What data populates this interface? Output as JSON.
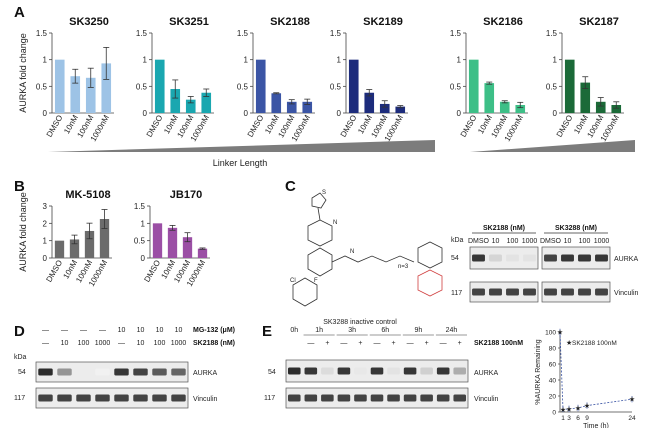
{
  "panels": {
    "A": "A",
    "B": "B",
    "C": "C",
    "D": "D",
    "E": "E"
  },
  "panelA": {
    "ylabel": "AURKA fold change",
    "yticks": [
      "0",
      "0.5",
      "1",
      "1.5"
    ],
    "categories": [
      "DMSO",
      "10nM",
      "100nM",
      "1000nM"
    ],
    "linker_label": "Linker Length",
    "charts": [
      {
        "title": "SK3250",
        "color": "#9dc3e6",
        "values": [
          1.0,
          0.69,
          0.66,
          0.93
        ],
        "err": [
          0,
          0.13,
          0.18,
          0.3
        ]
      },
      {
        "title": "SK3251",
        "color": "#1aa7b0",
        "values": [
          1.0,
          0.45,
          0.25,
          0.38
        ],
        "err": [
          0,
          0.17,
          0.06,
          0.07
        ]
      },
      {
        "title": "SK2188",
        "color": "#3b55a5",
        "values": [
          1.0,
          0.37,
          0.21,
          0.21
        ],
        "err": [
          0,
          0.01,
          0.04,
          0.05
        ]
      },
      {
        "title": "SK2189",
        "color": "#1d2c7c",
        "values": [
          1.0,
          0.38,
          0.17,
          0.12
        ],
        "err": [
          0,
          0.06,
          0.06,
          0.02
        ]
      },
      {
        "title": "SK2186",
        "color": "#3dbf87",
        "values": [
          1.0,
          0.56,
          0.21,
          0.15
        ],
        "err": [
          0,
          0.02,
          0.02,
          0.05
        ]
      },
      {
        "title": "SK2187",
        "color": "#1b6a38",
        "values": [
          1.0,
          0.57,
          0.21,
          0.15
        ],
        "err": [
          0,
          0.11,
          0.08,
          0.06
        ]
      }
    ]
  },
  "panelB": {
    "ylabel": "AURKA fold change",
    "categories": [
      "DMSO",
      "10nM",
      "100nM",
      "1000nM"
    ],
    "charts": [
      {
        "title": "MK-5108",
        "color": "#6b6b6b",
        "yticks": [
          "0",
          "1",
          "2",
          "3"
        ],
        "ymax": 3,
        "values": [
          1.0,
          1.07,
          1.56,
          2.25
        ],
        "err": [
          0,
          0.25,
          0.45,
          0.55
        ]
      },
      {
        "title": "JB170",
        "color": "#9b4fa5",
        "yticks": [
          "0",
          "0.5",
          "1",
          "1.5"
        ],
        "ymax": 1.5,
        "values": [
          1.0,
          0.87,
          0.6,
          0.27
        ],
        "err": [
          0,
          0.07,
          0.13,
          0.02
        ]
      }
    ]
  },
  "panelC": {
    "compound_label": "SK3288 inactive control",
    "n_label": "n=3",
    "kda": "kDa",
    "blot1_title": "SK2188 (nM)",
    "blot2_title": "SK3288 (nM)",
    "lanes": [
      "DMSO",
      "10",
      "100",
      "1000"
    ],
    "mw": [
      "54",
      "117"
    ],
    "rows": [
      "AURKA",
      "Vinculin"
    ],
    "blot1_aurka": [
      0.85,
      0.18,
      0.12,
      0.12
    ],
    "blot2_aurka": [
      0.8,
      0.85,
      0.85,
      0.85
    ]
  },
  "panelD": {
    "mg132_label": "MG-132 (μM)",
    "sk2188_label": "SK2188 (nM)",
    "mg132_values": [
      "—",
      "—",
      "—",
      "—",
      "10",
      "10",
      "10",
      "10"
    ],
    "sk2188_values": [
      "—",
      "10",
      "100",
      "1000",
      "—",
      "10",
      "100",
      "1000"
    ],
    "kda": "kDa",
    "mw": [
      "54",
      "117"
    ],
    "rows": [
      "AURKA",
      "Vinculin"
    ],
    "aurka_intensity": [
      0.9,
      0.45,
      0.08,
      0.06,
      0.85,
      0.8,
      0.7,
      0.65
    ]
  },
  "panelE": {
    "times": [
      "0h",
      "1h",
      "3h",
      "6h",
      "9h",
      "24h"
    ],
    "treat_signs": [
      "—",
      "+"
    ],
    "treat_label": "SK2188 100nM",
    "mw": [
      "54",
      "117"
    ],
    "rows": [
      "AURKA",
      "Vinculin"
    ],
    "aurka_intensity": [
      0.9,
      0.85,
      0.15,
      0.85,
      0.1,
      0.85,
      0.12,
      0.85,
      0.2,
      0.85,
      0.35
    ]
  },
  "chart_data": [
    {
      "type": "bar",
      "title": "SK3250",
      "categories": [
        "DMSO",
        "10nM",
        "100nM",
        "1000nM"
      ],
      "values": [
        1.0,
        0.69,
        0.66,
        0.93
      ],
      "ylabel": "AURKA fold change",
      "ylim": [
        0,
        1.5
      ]
    },
    {
      "type": "bar",
      "title": "SK3251",
      "categories": [
        "DMSO",
        "10nM",
        "100nM",
        "1000nM"
      ],
      "values": [
        1.0,
        0.45,
        0.25,
        0.38
      ],
      "ylim": [
        0,
        1.5
      ]
    },
    {
      "type": "bar",
      "title": "SK2188",
      "categories": [
        "DMSO",
        "10nM",
        "100nM",
        "1000nM"
      ],
      "values": [
        1.0,
        0.37,
        0.21,
        0.21
      ],
      "ylim": [
        0,
        1.5
      ]
    },
    {
      "type": "bar",
      "title": "SK2189",
      "categories": [
        "DMSO",
        "10nM",
        "100nM",
        "1000nM"
      ],
      "values": [
        1.0,
        0.38,
        0.17,
        0.12
      ],
      "ylim": [
        0,
        1.5
      ]
    },
    {
      "type": "bar",
      "title": "SK2186",
      "categories": [
        "DMSO",
        "10nM",
        "100nM",
        "1000nM"
      ],
      "values": [
        1.0,
        0.56,
        0.21,
        0.15
      ],
      "ylim": [
        0,
        1.5
      ]
    },
    {
      "type": "bar",
      "title": "SK2187",
      "categories": [
        "DMSO",
        "10nM",
        "100nM",
        "1000nM"
      ],
      "values": [
        1.0,
        0.57,
        0.21,
        0.15
      ],
      "ylim": [
        0,
        1.5
      ]
    },
    {
      "type": "bar",
      "title": "MK-5108",
      "categories": [
        "DMSO",
        "10nM",
        "100nM",
        "1000nM"
      ],
      "values": [
        1.0,
        1.07,
        1.56,
        2.25
      ],
      "ylabel": "AURKA fold change",
      "ylim": [
        0,
        3
      ]
    },
    {
      "type": "bar",
      "title": "JB170",
      "categories": [
        "DMSO",
        "10nM",
        "100nM",
        "1000nM"
      ],
      "values": [
        1.0,
        0.87,
        0.6,
        0.27
      ],
      "ylim": [
        0,
        1.5
      ]
    },
    {
      "type": "line",
      "title": "",
      "xlabel": "Time (h)",
      "ylabel": "%AURKA Remaining",
      "x": [
        1,
        3,
        6,
        9,
        24
      ],
      "series": [
        {
          "name": "SK2188 100nM",
          "values": [
            3,
            4,
            5,
            8,
            16
          ]
        }
      ],
      "x_point0": 0,
      "y_point0": 100,
      "xticks": [
        "1",
        "3",
        "6",
        "9",
        "24"
      ],
      "yticks": [
        "0",
        "20",
        "40",
        "60",
        "80",
        "100"
      ],
      "xlim": [
        0,
        24
      ],
      "ylim": [
        0,
        100
      ],
      "color": "#3b55a5"
    }
  ]
}
